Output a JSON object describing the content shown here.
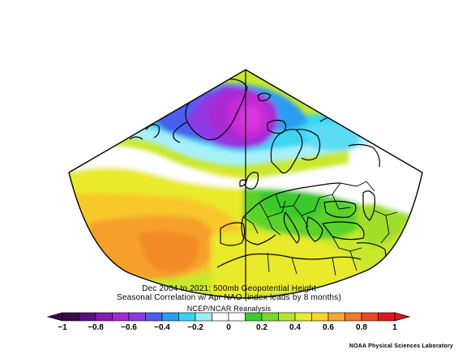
{
  "title": {
    "line1": "Dec 2004 to 2021: 500mb Geopotential Height",
    "line2": "Seasonal Correlation w/ Apr NAO (index leads by 8 months)",
    "line3": "NCEP/NCAR Reanalysis"
  },
  "credit": "NOAA Physical Sciences Laboratory",
  "colorbar": {
    "labels": [
      "−1",
      "−0.8",
      "−0.6",
      "−0.4",
      "−0.2",
      "0",
      "0.2",
      "0.4",
      "0.6",
      "0.8",
      "1"
    ],
    "colors": [
      "#3a0a4a",
      "#5c0f80",
      "#8a1ab8",
      "#a82ad2",
      "#8e38e6",
      "#4a5ef0",
      "#2a9cf2",
      "#36d6f2",
      "#9af0f8",
      "#ffffff",
      "#ffffff",
      "#3acc2a",
      "#7ad82a",
      "#b4e42c",
      "#e4ec2c",
      "#f8d82a",
      "#f8a82a",
      "#f27a28",
      "#ea4a22",
      "#e01818"
    ]
  },
  "map": {
    "field": "correlation",
    "projection": "conic",
    "regions": [
      "Greenland",
      "Iceland",
      "Europe",
      "North Africa",
      "Middle East"
    ]
  }
}
